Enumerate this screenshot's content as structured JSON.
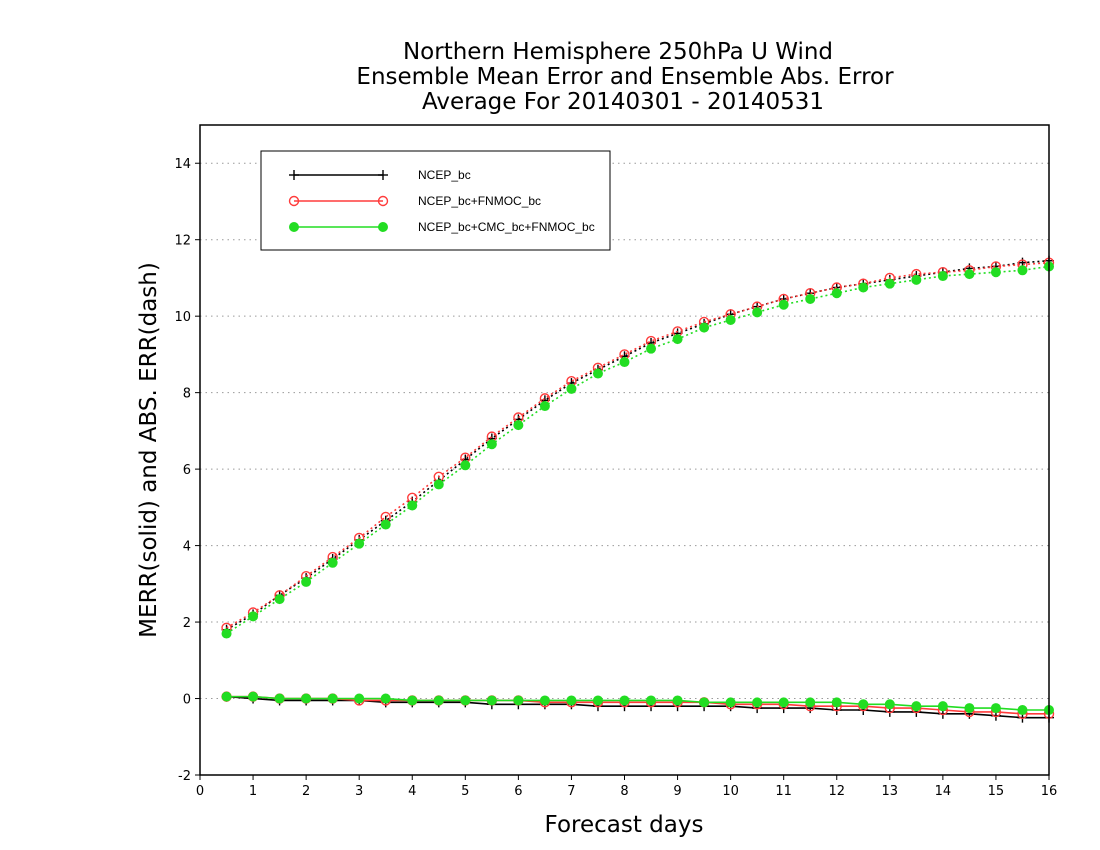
{
  "chart_data": {
    "type": "line",
    "title": [
      "Northern Hemisphere 250hPa U Wind",
      "Ensemble Mean Error and Ensemble Abs. Error",
      "Average For 20140301 - 20140531"
    ],
    "xlabel": "Forecast days",
    "ylabel": "MERR(solid) and ABS. ERR(dash)",
    "xlim": [
      0,
      16
    ],
    "ylim": [
      -2,
      15
    ],
    "xticks": [
      0,
      1,
      2,
      3,
      4,
      5,
      6,
      7,
      8,
      9,
      10,
      11,
      12,
      13,
      14,
      15,
      16
    ],
    "yticks": [
      -2,
      0,
      2,
      4,
      6,
      8,
      10,
      12,
      14
    ],
    "grid": "horizontal-dotted",
    "legend_position": "top-left",
    "x": [
      0.5,
      1,
      1.5,
      2,
      2.5,
      3,
      3.5,
      4,
      4.5,
      5,
      5.5,
      6,
      6.5,
      7,
      7.5,
      8,
      8.5,
      9,
      9.5,
      10,
      10.5,
      11,
      11.5,
      12,
      12.5,
      13,
      13.5,
      14,
      14.5,
      15,
      15.5,
      16
    ],
    "series": [
      {
        "name": "NCEP_bc",
        "color": "#000000",
        "marker": "plus",
        "abs_err": [
          1.8,
          2.2,
          2.7,
          3.15,
          3.65,
          4.15,
          4.65,
          5.15,
          5.7,
          6.25,
          6.8,
          7.3,
          7.8,
          8.25,
          8.6,
          8.95,
          9.3,
          9.55,
          9.8,
          10.05,
          10.25,
          10.45,
          10.6,
          10.75,
          10.85,
          10.95,
          11.05,
          11.15,
          11.25,
          11.3,
          11.4,
          11.45
        ],
        "mean_err": [
          0.05,
          0.0,
          -0.05,
          -0.05,
          -0.05,
          -0.05,
          -0.1,
          -0.1,
          -0.1,
          -0.1,
          -0.15,
          -0.15,
          -0.15,
          -0.15,
          -0.2,
          -0.2,
          -0.2,
          -0.2,
          -0.2,
          -0.2,
          -0.25,
          -0.25,
          -0.25,
          -0.3,
          -0.3,
          -0.35,
          -0.35,
          -0.4,
          -0.4,
          -0.45,
          -0.5,
          -0.5
        ]
      },
      {
        "name": "NCEP_bc+FNMOC_bc",
        "color": "#ff3b3b",
        "marker": "open-circle",
        "abs_err": [
          1.85,
          2.25,
          2.7,
          3.2,
          3.7,
          4.2,
          4.75,
          5.25,
          5.8,
          6.3,
          6.85,
          7.35,
          7.85,
          8.3,
          8.65,
          9.0,
          9.35,
          9.6,
          9.85,
          10.05,
          10.25,
          10.45,
          10.6,
          10.75,
          10.85,
          11.0,
          11.1,
          11.15,
          11.2,
          11.3,
          11.35,
          11.4
        ],
        "mean_err": [
          0.05,
          0.05,
          0.0,
          0.0,
          0.0,
          -0.05,
          -0.05,
          -0.05,
          -0.05,
          -0.05,
          -0.05,
          -0.05,
          -0.1,
          -0.1,
          -0.1,
          -0.1,
          -0.1,
          -0.1,
          -0.1,
          -0.15,
          -0.15,
          -0.15,
          -0.2,
          -0.2,
          -0.2,
          -0.25,
          -0.25,
          -0.3,
          -0.35,
          -0.35,
          -0.4,
          -0.4
        ]
      },
      {
        "name": "NCEP_bc+CMC_bc+FNMOC_bc",
        "color": "#22dd22",
        "marker": "filled-circle",
        "abs_err": [
          1.7,
          2.15,
          2.6,
          3.05,
          3.55,
          4.05,
          4.55,
          5.05,
          5.6,
          6.1,
          6.65,
          7.15,
          7.65,
          8.1,
          8.5,
          8.8,
          9.15,
          9.4,
          9.7,
          9.9,
          10.1,
          10.3,
          10.45,
          10.6,
          10.75,
          10.85,
          10.95,
          11.05,
          11.1,
          11.15,
          11.2,
          11.3
        ],
        "mean_err": [
          0.05,
          0.05,
          0.0,
          0.0,
          0.0,
          0.0,
          0.0,
          -0.05,
          -0.05,
          -0.05,
          -0.05,
          -0.05,
          -0.05,
          -0.05,
          -0.05,
          -0.05,
          -0.05,
          -0.05,
          -0.1,
          -0.1,
          -0.1,
          -0.1,
          -0.1,
          -0.1,
          -0.15,
          -0.15,
          -0.2,
          -0.2,
          -0.25,
          -0.25,
          -0.3,
          -0.3
        ]
      }
    ]
  }
}
